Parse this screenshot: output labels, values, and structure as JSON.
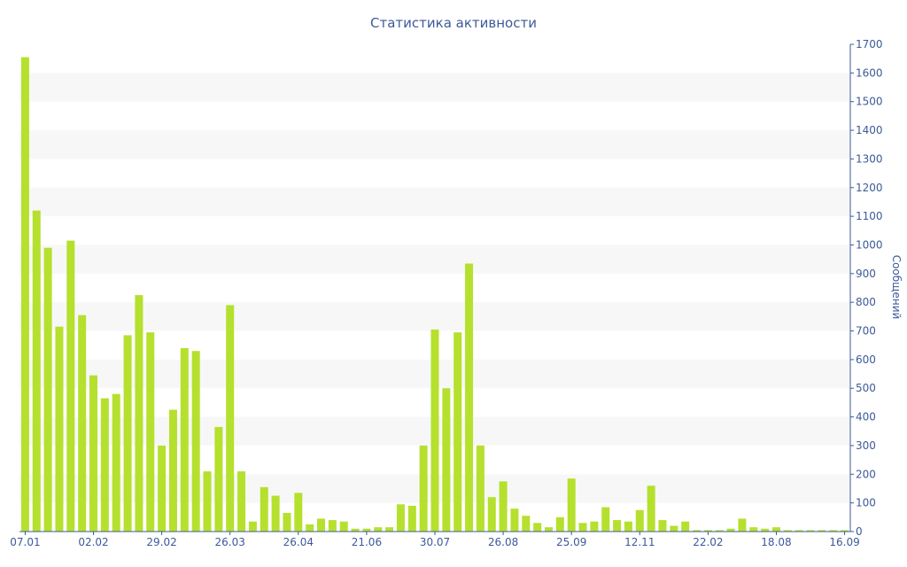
{
  "colors": {
    "bar": "#b5e02e",
    "axis": "#3d5a98",
    "band": "#f7f7f7",
    "text": "#3d5a98"
  },
  "chart_data": {
    "type": "bar",
    "title": "Статистика активности",
    "xlabel": "",
    "ylabel": "Сообщений",
    "ylim": [
      0,
      1700
    ],
    "y_ticks": [
      0,
      100,
      200,
      300,
      400,
      500,
      600,
      700,
      800,
      900,
      1000,
      1100,
      1200,
      1300,
      1400,
      1500,
      1600,
      1700
    ],
    "y_axis_side": "right",
    "grid": "alternating horizontal bands",
    "x_tick_labels": [
      {
        "index": 0,
        "label": "07.01"
      },
      {
        "index": 6,
        "label": "02.02"
      },
      {
        "index": 12,
        "label": "29.02"
      },
      {
        "index": 18,
        "label": "26.03"
      },
      {
        "index": 24,
        "label": "26.04"
      },
      {
        "index": 30,
        "label": "21.06"
      },
      {
        "index": 36,
        "label": "30.07"
      },
      {
        "index": 42,
        "label": "26.08"
      },
      {
        "index": 48,
        "label": "25.09"
      },
      {
        "index": 54,
        "label": "12.11"
      },
      {
        "index": 60,
        "label": "22.02"
      },
      {
        "index": 66,
        "label": "18.08"
      },
      {
        "index": 72,
        "label": "16.09"
      }
    ],
    "values": [
      1655,
      1120,
      990,
      715,
      1015,
      755,
      545,
      465,
      480,
      685,
      825,
      695,
      300,
      425,
      640,
      630,
      210,
      365,
      790,
      210,
      35,
      155,
      125,
      65,
      135,
      25,
      45,
      40,
      35,
      10,
      10,
      15,
      15,
      95,
      90,
      300,
      705,
      500,
      695,
      935,
      300,
      120,
      175,
      80,
      55,
      30,
      15,
      50,
      185,
      30,
      35,
      85,
      40,
      35,
      75,
      160,
      40,
      20,
      35,
      5,
      5,
      5,
      10,
      45,
      15,
      10,
      15,
      5,
      5,
      5,
      5,
      5,
      5
    ]
  }
}
